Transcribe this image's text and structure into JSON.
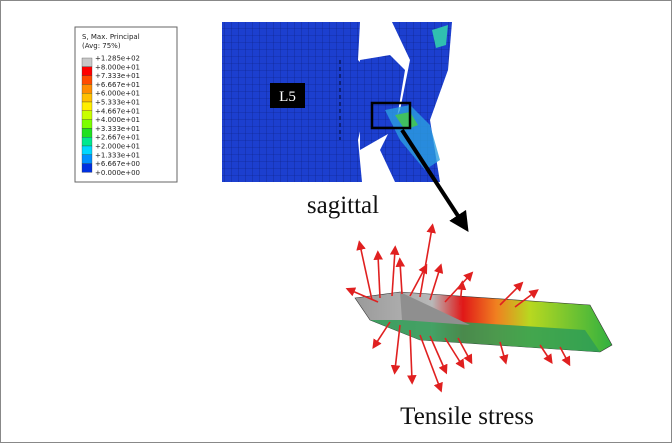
{
  "legend": {
    "title": "S, Max. Principal",
    "subtitle": "(Avg: 75%)",
    "labels": [
      "+1.285e+02",
      "+8.000e+01",
      "+7.333e+01",
      "+6.667e+01",
      "+6.000e+01",
      "+5.333e+01",
      "+4.667e+01",
      "+4.000e+01",
      "+3.333e+01",
      "+2.667e+01",
      "+2.000e+01",
      "+1.333e+01",
      "+6.667e+00",
      "+0.000e+00"
    ]
  },
  "labels": {
    "vertebra": "L5",
    "view": "sagittal",
    "caption": "Tensile stress"
  }
}
